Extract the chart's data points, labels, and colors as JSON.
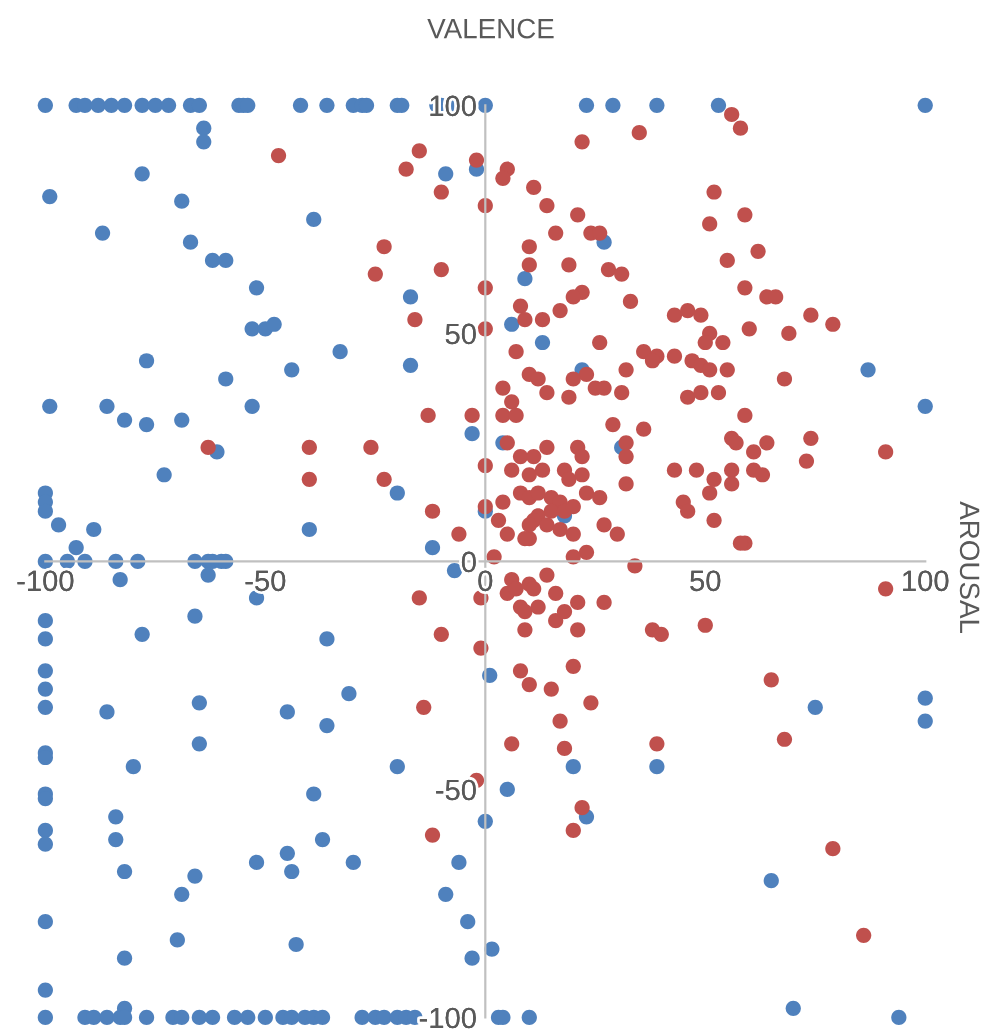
{
  "chart_data": {
    "type": "scatter",
    "title": "VALENCE",
    "ylabel": "AROUSAL",
    "xlim": [
      -100,
      100
    ],
    "ylim": [
      -100,
      100
    ],
    "xticks": [
      -100,
      -50,
      0,
      50,
      100
    ],
    "yticks": [
      -100,
      -50,
      0,
      50,
      100
    ],
    "grid": false,
    "marker": "circle",
    "series": [
      {
        "color": "#4f81bd",
        "x": [
          -100,
          -93,
          -91,
          -88,
          -85,
          -82,
          -78,
          -75,
          -72,
          -67,
          -65,
          -56,
          -55,
          -54,
          -42,
          -36,
          -30,
          -28,
          -27,
          -20,
          -19,
          -11,
          -10,
          -7,
          0,
          23,
          29,
          39,
          53,
          100,
          -64,
          -64,
          -78,
          -99,
          -69,
          -87,
          -39,
          -67,
          -62,
          -59,
          -52,
          -53,
          -50,
          -48,
          -33,
          -44,
          -77,
          -59,
          -99,
          -86,
          -82,
          -77,
          -69,
          -53,
          -61,
          -73,
          -17,
          -17,
          -9,
          -2,
          -3,
          -20,
          0,
          -100,
          -100,
          -100,
          -97,
          -89,
          -93,
          -40,
          -12,
          -100,
          -95,
          -91,
          -84,
          -79,
          -66,
          -63,
          -62,
          -60,
          -59,
          -83,
          -63,
          -7,
          -52,
          -100,
          -100,
          -78,
          -66,
          -36,
          -100,
          -100,
          -100,
          -86,
          -65,
          -45,
          -36,
          -31,
          -65,
          -100,
          -100,
          -80,
          -20,
          -39,
          -100,
          -100,
          -84,
          -100,
          -100,
          -84,
          -37,
          -45,
          -44,
          -52,
          -30,
          -82,
          -66,
          -69,
          0,
          -6,
          -9,
          -4,
          -3,
          1.5,
          1,
          -100,
          -70,
          -43,
          -82,
          -100,
          -82,
          -100,
          -91,
          -89,
          -86,
          -83,
          -82,
          -77,
          -71,
          -69,
          -65,
          -62,
          -57,
          -54,
          -50,
          -46,
          -44,
          -41,
          -39,
          -37,
          -28,
          -25,
          -23,
          -20,
          -18,
          -16,
          3,
          100,
          100,
          75,
          20,
          39,
          5,
          23,
          65,
          70,
          4,
          10,
          94,
          27,
          9,
          6,
          13,
          22,
          87,
          100,
          4,
          31,
          18
        ],
        "values": [
          100,
          100,
          100,
          100,
          100,
          100,
          100,
          100,
          100,
          100,
          100,
          100,
          100,
          100,
          100,
          100,
          100,
          100,
          100,
          100,
          100,
          100,
          100,
          100,
          100,
          100,
          100,
          100,
          100,
          100,
          95,
          92,
          85,
          80,
          79,
          72,
          75,
          70,
          66,
          66,
          60,
          51,
          51,
          52,
          46,
          42,
          44,
          40,
          34,
          34,
          31,
          30,
          31,
          34,
          24,
          19,
          43,
          58,
          85,
          86,
          28,
          15,
          11,
          15,
          13,
          11,
          8,
          7,
          3,
          7,
          3,
          0,
          0,
          0,
          0,
          0,
          0,
          0,
          0,
          0,
          0,
          -4,
          -3,
          -2,
          -8,
          -13,
          -17,
          -16,
          -12,
          -17,
          -24,
          -28,
          -32,
          -33,
          -31,
          -33,
          -36,
          -29,
          -40,
          -42,
          -43,
          -45,
          -45,
          -51,
          -51,
          -52,
          -56,
          -59,
          -62,
          -61,
          -61,
          -64,
          -68,
          -66,
          -66,
          -68,
          -69,
          -73,
          -57,
          -66,
          -73,
          -79,
          -87,
          -85,
          -25,
          -79,
          -83,
          -84,
          -87,
          -94,
          -98,
          -100,
          -100,
          -100,
          -100,
          -100,
          -100,
          -100,
          -100,
          -100,
          -100,
          -100,
          -100,
          -100,
          -100,
          -100,
          -100,
          -100,
          -100,
          -100,
          -100,
          -100,
          -100,
          -100,
          -100,
          -100,
          -100,
          -30,
          -35,
          -32,
          -45,
          -45,
          -50,
          -56,
          -70,
          -98,
          -100,
          -100,
          -100,
          70,
          62,
          52,
          48,
          42,
          42,
          34,
          26,
          25,
          10
        ]
      },
      {
        "color": "#c0504d",
        "x": [
          -47,
          -15,
          -18,
          -10,
          -2,
          0,
          -23,
          -25,
          -10,
          0,
          -16,
          0,
          -13,
          -3,
          -63,
          -40,
          -26,
          -40,
          -23,
          0,
          -12,
          -6,
          0,
          -15,
          -1,
          -10,
          -1,
          -14,
          -2,
          -12,
          2,
          10,
          20,
          23,
          34,
          59,
          14,
          6,
          5,
          7,
          10,
          11,
          16,
          8,
          9,
          12,
          16,
          18,
          21,
          27,
          9,
          21,
          38,
          40,
          50,
          91,
          8,
          10,
          15,
          20,
          24,
          17,
          6,
          18,
          39,
          65,
          68,
          22,
          20,
          79,
          86,
          56,
          58,
          35,
          22,
          5,
          4,
          11,
          14,
          52,
          59,
          51,
          21,
          16,
          24,
          26,
          10,
          62,
          10,
          19,
          28,
          31,
          55,
          59,
          22,
          20,
          64,
          66,
          8,
          17,
          33,
          43,
          46,
          49,
          74,
          79,
          9,
          13,
          60,
          69,
          51,
          50,
          54,
          26,
          7,
          36,
          39,
          43,
          38,
          47,
          49,
          51,
          55,
          32,
          23,
          10,
          12,
          20,
          25,
          27,
          31,
          4,
          14,
          19,
          46,
          49,
          53,
          68,
          6,
          4,
          7,
          59,
          29,
          36,
          5,
          14,
          56,
          57,
          64,
          74,
          32,
          21,
          8,
          11,
          22,
          32,
          91,
          61,
          73,
          43,
          48,
          56,
          61,
          63,
          6,
          10,
          13,
          18,
          19,
          22,
          52,
          56,
          32,
          51,
          8,
          10,
          12,
          23,
          26,
          15,
          17,
          15,
          18,
          20,
          12,
          11,
          14,
          4,
          45,
          46,
          52,
          3,
          5,
          10,
          9,
          17,
          20,
          27,
          30,
          58
        ],
        "values": [
          89,
          90,
          86,
          81,
          88,
          78,
          69,
          63,
          64,
          60,
          53,
          51,
          32,
          32,
          25,
          25,
          25,
          18,
          18,
          21,
          11,
          6,
          12,
          -8,
          -8,
          -16,
          -19,
          -32,
          -48,
          -60,
          1,
          5,
          1,
          2,
          -1,
          4,
          -3,
          -4,
          -7,
          -6,
          -5,
          -6,
          -7,
          -10,
          -11,
          -10,
          -13,
          -11,
          -9,
          -9,
          -15,
          -15,
          -15,
          -16,
          -14,
          -6,
          -24,
          -27,
          -28,
          -23,
          -31,
          -35,
          -40,
          -41,
          -40,
          -26,
          -39,
          -54,
          -59,
          -63,
          -82,
          98,
          95,
          94,
          92,
          86,
          84,
          82,
          78,
          81,
          76,
          74,
          76,
          72,
          72,
          72,
          69,
          68,
          65,
          65,
          64,
          63,
          66,
          60,
          59,
          58,
          58,
          58,
          56,
          55,
          57,
          54,
          55,
          54,
          54,
          52,
          53,
          53,
          51,
          50,
          50,
          48,
          48,
          48,
          46,
          46,
          45,
          45,
          44,
          44,
          43,
          42,
          42,
          42,
          41,
          41,
          40,
          40,
          38,
          38,
          37,
          38,
          37,
          36,
          36,
          37,
          37,
          40,
          35,
          32,
          32,
          32,
          30,
          29,
          26,
          25,
          27,
          26,
          26,
          27,
          26,
          25,
          23,
          23,
          23,
          23,
          24,
          24,
          22,
          20,
          20,
          20,
          20,
          19,
          20,
          19,
          20,
          20,
          18,
          19,
          18,
          17,
          17,
          15,
          15,
          14,
          15,
          15,
          14,
          14,
          13,
          11,
          11,
          12,
          10,
          9,
          8,
          13,
          13,
          11,
          9,
          9,
          6,
          8,
          5,
          7,
          6,
          8,
          6,
          4
        ]
      }
    ]
  }
}
